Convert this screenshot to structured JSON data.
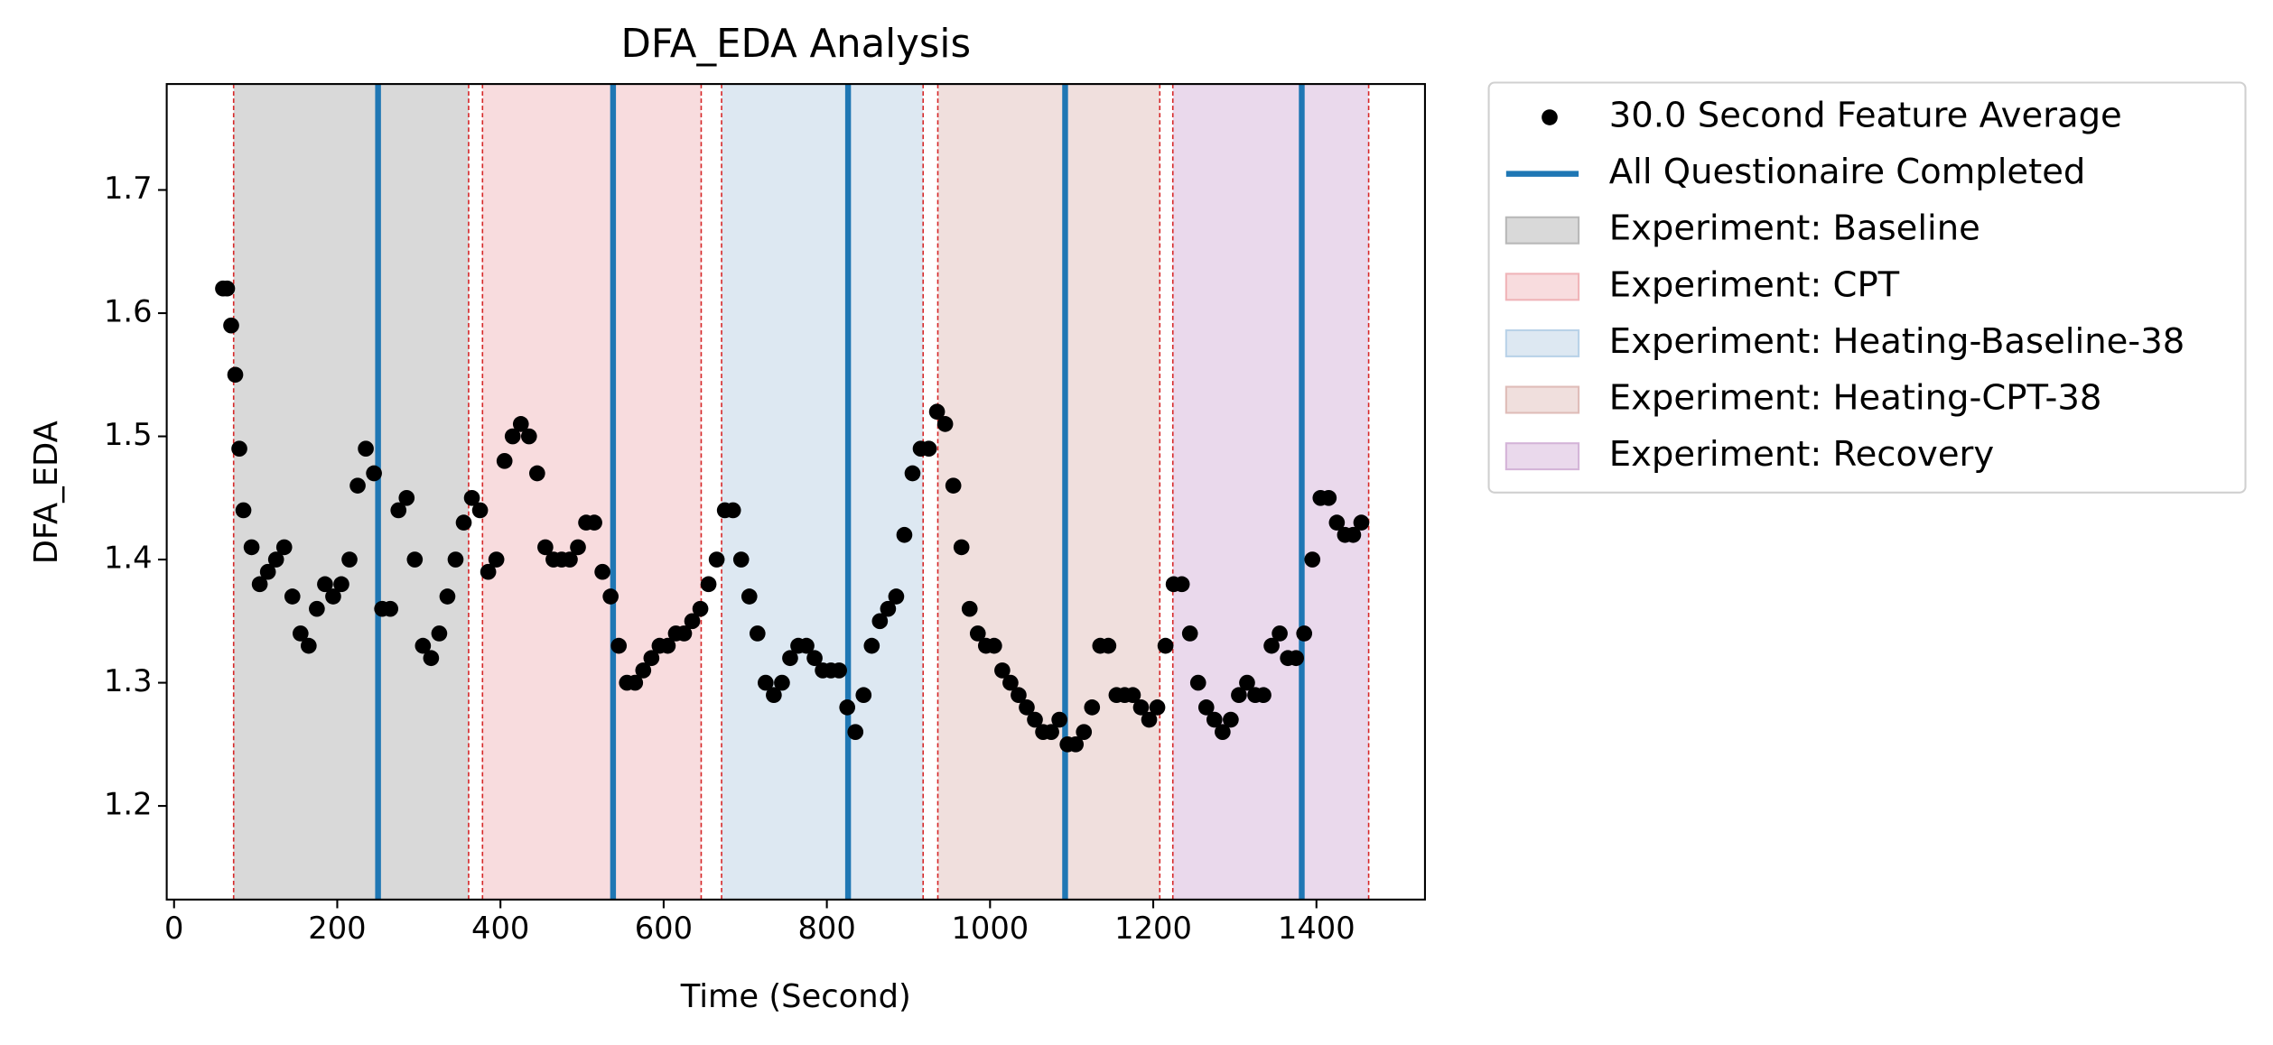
{
  "chart_data": {
    "type": "scatter",
    "title": "DFA_EDA Analysis",
    "xlabel": "Time (Second)",
    "ylabel": "DFA_EDA",
    "x": [
      60,
      65,
      70,
      75,
      80,
      85,
      95,
      105,
      115,
      125,
      135,
      145,
      155,
      165,
      175,
      185,
      195,
      205,
      215,
      225,
      235,
      245,
      255,
      265,
      275,
      285,
      295,
      305,
      315,
      325,
      335,
      345,
      355,
      365,
      375,
      385,
      395,
      405,
      415,
      425,
      435,
      445,
      455,
      465,
      475,
      485,
      495,
      505,
      515,
      525,
      535,
      545,
      555,
      565,
      575,
      585,
      595,
      605,
      615,
      625,
      635,
      645,
      655,
      665,
      675,
      685,
      695,
      705,
      715,
      725,
      735,
      745,
      755,
      765,
      775,
      785,
      795,
      805,
      815,
      825,
      835,
      845,
      855,
      865,
      875,
      885,
      895,
      905,
      915,
      925,
      935,
      945,
      955,
      965,
      975,
      985,
      995,
      1005,
      1015,
      1025,
      1035,
      1045,
      1055,
      1065,
      1075,
      1085,
      1095,
      1105,
      1115,
      1125,
      1135,
      1145,
      1155,
      1165,
      1175,
      1185,
      1195,
      1205,
      1215,
      1225,
      1235,
      1245,
      1255,
      1265,
      1275,
      1285,
      1295,
      1305,
      1315,
      1325,
      1335,
      1345,
      1355,
      1365,
      1375,
      1385,
      1395,
      1405,
      1415,
      1425,
      1435,
      1445,
      1455
    ],
    "series": [
      {
        "name": "30.0 Second Feature Average",
        "color": "#000000",
        "values": [
          1.62,
          1.62,
          1.59,
          1.55,
          1.49,
          1.44,
          1.41,
          1.38,
          1.39,
          1.4,
          1.41,
          1.37,
          1.34,
          1.33,
          1.36,
          1.38,
          1.37,
          1.38,
          1.4,
          1.46,
          1.49,
          1.47,
          1.36,
          1.36,
          1.44,
          1.45,
          1.4,
          1.33,
          1.32,
          1.34,
          1.37,
          1.4,
          1.43,
          1.45,
          1.44,
          1.39,
          1.4,
          1.48,
          1.5,
          1.51,
          1.5,
          1.47,
          1.41,
          1.4,
          1.4,
          1.4,
          1.41,
          1.43,
          1.43,
          1.39,
          1.37,
          1.33,
          1.3,
          1.3,
          1.31,
          1.32,
          1.33,
          1.33,
          1.34,
          1.34,
          1.35,
          1.36,
          1.38,
          1.4,
          1.44,
          1.44,
          1.4,
          1.37,
          1.34,
          1.3,
          1.29,
          1.3,
          1.32,
          1.33,
          1.33,
          1.32,
          1.31,
          1.31,
          1.31,
          1.28,
          1.26,
          1.29,
          1.33,
          1.35,
          1.36,
          1.37,
          1.42,
          1.47,
          1.49,
          1.49,
          1.52,
          1.51,
          1.46,
          1.41,
          1.36,
          1.34,
          1.33,
          1.33,
          1.31,
          1.3,
          1.29,
          1.28,
          1.27,
          1.26,
          1.26,
          1.27,
          1.25,
          1.25,
          1.26,
          1.28,
          1.33,
          1.33,
          1.29,
          1.29,
          1.29,
          1.28,
          1.27,
          1.28,
          1.33,
          1.38,
          1.38,
          1.34,
          1.3,
          1.28,
          1.27,
          1.26,
          1.27,
          1.29,
          1.3,
          1.29,
          1.29,
          1.33,
          1.34,
          1.32,
          1.32,
          1.34,
          1.4,
          1.45,
          1.45,
          1.43,
          1.42,
          1.42,
          1.43
        ]
      }
    ],
    "vlines": {
      "name": "All Questionaire Completed",
      "color": "#1f77b4",
      "x": [
        250,
        538,
        826,
        1092,
        1382
      ]
    },
    "regions": [
      {
        "name": "Experiment: Baseline",
        "color": "#d9d9d9",
        "edge": "#b8b8b8",
        "start": 73,
        "end": 361
      },
      {
        "name": "Experiment: CPT",
        "color": "#f8dcde",
        "edge": "#f0b4b8",
        "start": 378,
        "end": 646
      },
      {
        "name": "Experiment: Heating-Baseline-38",
        "color": "#dde8f2",
        "edge": "#b9d2e8",
        "start": 671,
        "end": 918
      },
      {
        "name": "Experiment: Heating-CPT-38",
        "color": "#f0dfdd",
        "edge": "#dfbcb8",
        "start": 936,
        "end": 1208
      },
      {
        "name": "Experiment: Recovery",
        "color": "#ead9ec",
        "edge": "#d4b4d8",
        "start": 1224,
        "end": 1464
      }
    ],
    "boundary_color": "#d62728",
    "xlim": [
      -9,
      1533
    ],
    "ylim": [
      1.124,
      1.786
    ],
    "xticks": [
      0,
      200,
      400,
      600,
      800,
      1000,
      1200,
      1400
    ],
    "yticks": [
      1.2,
      1.3,
      1.4,
      1.5,
      1.6,
      1.7
    ]
  }
}
